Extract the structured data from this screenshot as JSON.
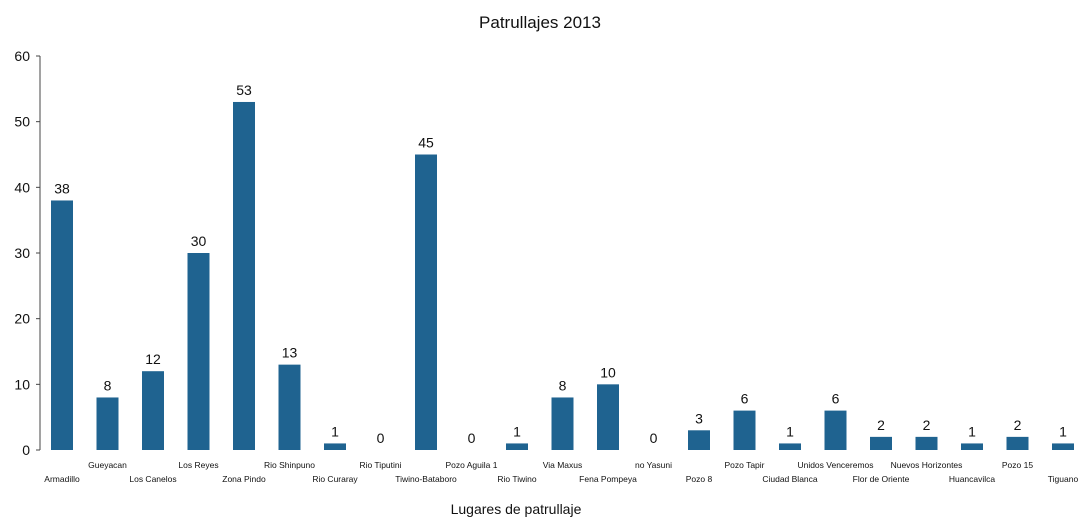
{
  "chart_data": {
    "type": "bar",
    "title": "Patrullajes 2013",
    "xlabel": "Lugares de patrullaje",
    "ylabel": "",
    "ylim": [
      0,
      60
    ],
    "yticks": [
      0,
      10,
      20,
      30,
      40,
      50,
      60
    ],
    "grid": false,
    "legend": "none",
    "bar_color": "#1f6390",
    "categories": [
      "Armadillo",
      "Gueyacan",
      "Los Canelos",
      "Los Reyes",
      "Zona Pindo",
      "Rio Shinpuno",
      "Rio Curaray",
      "Rio Tiputini",
      "Tiwino-Bataboro",
      "Pozo Aguila 1",
      "Rio Tiwino",
      "Via Maxus",
      "Fena Pompeya",
      "no Yasuni",
      "Pozo 8",
      "Pozo Tapir",
      "Ciudad Blanca",
      "Unidos Venceremos",
      "Flor de Oriente",
      "Nuevos Horizontes",
      "Huancavilca",
      "Pozo 15",
      "Tiguano"
    ],
    "values": [
      38,
      8,
      12,
      30,
      53,
      13,
      1,
      0,
      45,
      0,
      1,
      8,
      10,
      0,
      3,
      6,
      1,
      6,
      2,
      2,
      1,
      2,
      1
    ]
  }
}
